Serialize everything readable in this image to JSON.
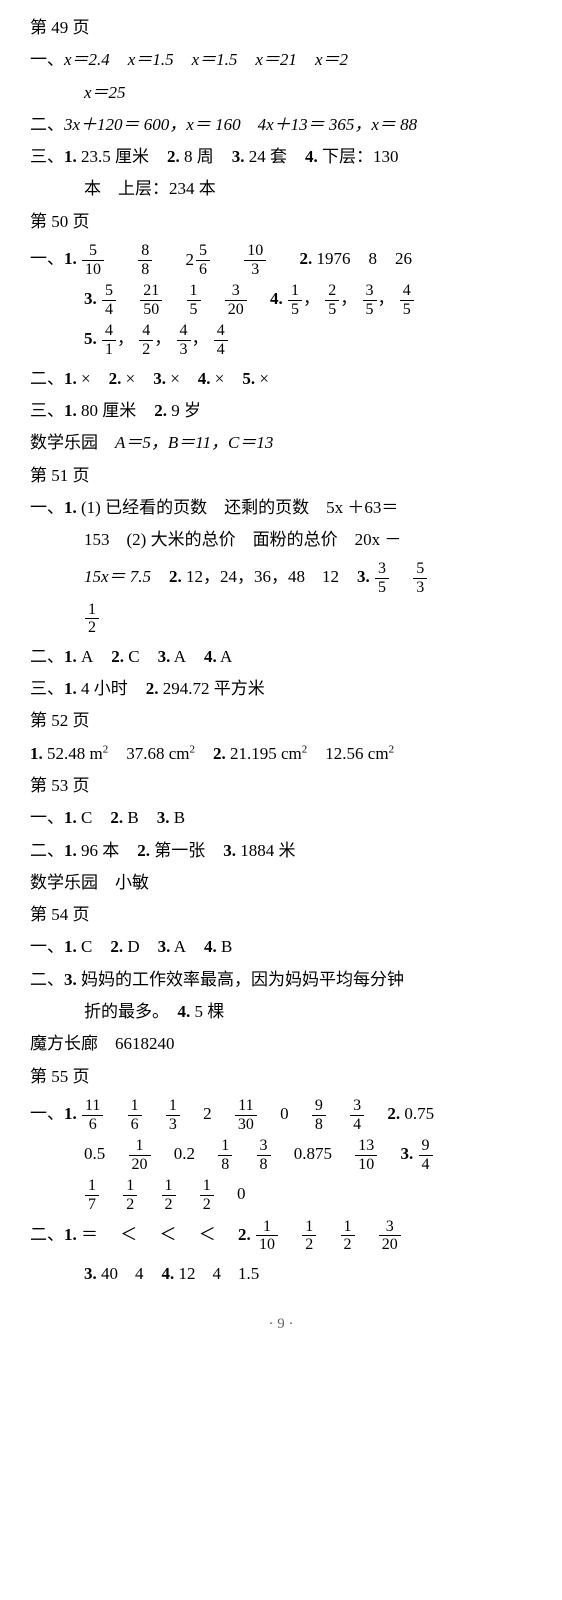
{
  "p49": {
    "header": "第 49 页",
    "s1_label": "一、",
    "s1_eqs": [
      "x＝2.4",
      "x＝1.5",
      "x＝1.5",
      "x＝21",
      "x＝2",
      "x＝25"
    ],
    "s2_label": "二、",
    "s2_text": "3x＋120＝ 600，x＝ 160　4x＋13＝ 365，x＝ 88",
    "s3_label": "三、",
    "s3_items": [
      {
        "n": "1.",
        "t": "23.5 厘米"
      },
      {
        "n": "2.",
        "t": "8 周"
      },
      {
        "n": "3.",
        "t": "24 套"
      },
      {
        "n": "4.",
        "t": "下层：130"
      }
    ],
    "s3_cont": "本　上层：234 本"
  },
  "p50": {
    "header": "第 50 页",
    "s1_label": "一、",
    "q1": {
      "n": "1.",
      "fracs": [
        {
          "num": "5",
          "den": "10"
        },
        {
          "num": "8",
          "den": "8"
        }
      ],
      "mixed": {
        "w": "2",
        "num": "5",
        "den": "6"
      },
      "frac3": {
        "num": "10",
        "den": "3"
      }
    },
    "q2": {
      "n": "2.",
      "vals": [
        "1976",
        "8",
        "26"
      ]
    },
    "q3": {
      "n": "3.",
      "fracs": [
        {
          "num": "5",
          "den": "4"
        },
        {
          "num": "21",
          "den": "50"
        },
        {
          "num": "1",
          "den": "5"
        },
        {
          "num": "3",
          "den": "20"
        }
      ]
    },
    "q4": {
      "n": "4.",
      "fracs": [
        {
          "num": "1",
          "den": "5"
        },
        {
          "num": "2",
          "den": "5"
        },
        {
          "num": "3",
          "den": "5"
        },
        {
          "num": "4",
          "den": "5"
        }
      ]
    },
    "q5": {
      "n": "5.",
      "fracs": [
        {
          "num": "4",
          "den": "1"
        },
        {
          "num": "4",
          "den": "2"
        },
        {
          "num": "4",
          "den": "3"
        },
        {
          "num": "4",
          "den": "4"
        }
      ]
    },
    "s2_label": "二、",
    "s2_items": [
      {
        "n": "1.",
        "t": "×"
      },
      {
        "n": "2.",
        "t": "×"
      },
      {
        "n": "3.",
        "t": "×"
      },
      {
        "n": "4.",
        "t": "×"
      },
      {
        "n": "5.",
        "t": "×"
      }
    ],
    "s3_label": "三、",
    "s3_items": [
      {
        "n": "1.",
        "t": "80 厘米"
      },
      {
        "n": "2.",
        "t": "9 岁"
      }
    ],
    "extra_label": "数学乐园",
    "extra_text": "A＝5，B＝11，C＝13"
  },
  "p51": {
    "header": "第 51 页",
    "s1_label": "一、",
    "q1_n": "1.",
    "q1_p1": "(1) 已经看的页数　还剩的页数　5x ＋63＝",
    "q1_p2": "153　(2) 大米的总价　面粉的总价　20x －",
    "q1_p3a": "15x＝ 7.5",
    "q2_n": "2.",
    "q2_t": "12，24，36，48　12",
    "q3_n": "3.",
    "q3_fracs": [
      {
        "num": "3",
        "den": "5"
      },
      {
        "num": "5",
        "den": "3"
      },
      {
        "num": "1",
        "den": "2"
      }
    ],
    "s2_label": "二、",
    "s2_items": [
      {
        "n": "1.",
        "t": "A"
      },
      {
        "n": "2.",
        "t": "C"
      },
      {
        "n": "3.",
        "t": "A"
      },
      {
        "n": "4.",
        "t": "A"
      }
    ],
    "s3_label": "三、",
    "s3_items": [
      {
        "n": "1.",
        "t": "4 小时"
      },
      {
        "n": "2.",
        "t": "294.72 平方米"
      }
    ]
  },
  "p52": {
    "header": "第 52 页",
    "q1_n": "1.",
    "q1_vals": [
      "52.48 m",
      "37.68 cm"
    ],
    "q2_n": "2.",
    "q2_vals": [
      "21.195 cm",
      "12.56 cm"
    ]
  },
  "p53": {
    "header": "第 53 页",
    "s1_label": "一、",
    "s1_items": [
      {
        "n": "1.",
        "t": "C"
      },
      {
        "n": "2.",
        "t": "B"
      },
      {
        "n": "3.",
        "t": "B"
      }
    ],
    "s2_label": "二、",
    "s2_items": [
      {
        "n": "1.",
        "t": "96 本"
      },
      {
        "n": "2.",
        "t": "第一张"
      },
      {
        "n": "3.",
        "t": "1884 米"
      }
    ],
    "extra_label": "数学乐园",
    "extra_text": "小敏"
  },
  "p54": {
    "header": "第 54 页",
    "s1_label": "一、",
    "s1_items": [
      {
        "n": "1.",
        "t": "C"
      },
      {
        "n": "2.",
        "t": "D"
      },
      {
        "n": "3.",
        "t": "A"
      },
      {
        "n": "4.",
        "t": "B"
      }
    ],
    "s2_label": "二、",
    "s2_q3_n": "3.",
    "s2_q3_t": "妈妈的工作效率最高，因为妈妈平均每分钟",
    "s2_q3_t2": "折的最多。",
    "s2_q4_n": "4.",
    "s2_q4_t": "5 棵",
    "extra_label": "魔方长廊",
    "extra_text": "6618240"
  },
  "p55": {
    "header": "第 55 页",
    "s1_label": "一、",
    "q1_n": "1.",
    "q1_fracsA": [
      {
        "num": "11",
        "den": "6"
      },
      {
        "num": "1",
        "den": "6"
      },
      {
        "num": "1",
        "den": "3"
      }
    ],
    "q1_mid": "2",
    "q1_fracsB": [
      {
        "num": "11",
        "den": "30"
      }
    ],
    "q1_zero": "0",
    "q1_fracsC": [
      {
        "num": "9",
        "den": "8"
      },
      {
        "num": "3",
        "den": "4"
      }
    ],
    "q2_n": "2.",
    "q2_a": "0.75",
    "q2b_a": "0.5",
    "q2b_frac1": {
      "num": "1",
      "den": "20"
    },
    "q2b_b": "0.2",
    "q2b_fracs": [
      {
        "num": "1",
        "den": "8"
      },
      {
        "num": "3",
        "den": "8"
      }
    ],
    "q2b_c": "0.875",
    "q2b_frac2": {
      "num": "13",
      "den": "10"
    },
    "q3_n": "3.",
    "q3_fracs": [
      {
        "num": "9",
        "den": "4"
      },
      {
        "num": "1",
        "den": "7"
      },
      {
        "num": "1",
        "den": "2"
      },
      {
        "num": "1",
        "den": "2"
      },
      {
        "num": "1",
        "den": "2"
      }
    ],
    "q3_zero": "0",
    "s2_label": "二、",
    "s2_q1_n": "1.",
    "s2_q1_ops": [
      "＝",
      "＜",
      "＜",
      "＜"
    ],
    "s2_q2_n": "2.",
    "s2_q2_fracs": [
      {
        "num": "1",
        "den": "10"
      },
      {
        "num": "1",
        "den": "2"
      },
      {
        "num": "1",
        "den": "2"
      },
      {
        "num": "3",
        "den": "20"
      }
    ],
    "s2_q3_n": "3.",
    "s2_q3_t": "40　4",
    "s2_q4_n": "4.",
    "s2_q4_t": "12　4　1.5"
  },
  "footer": "· 9 ·"
}
